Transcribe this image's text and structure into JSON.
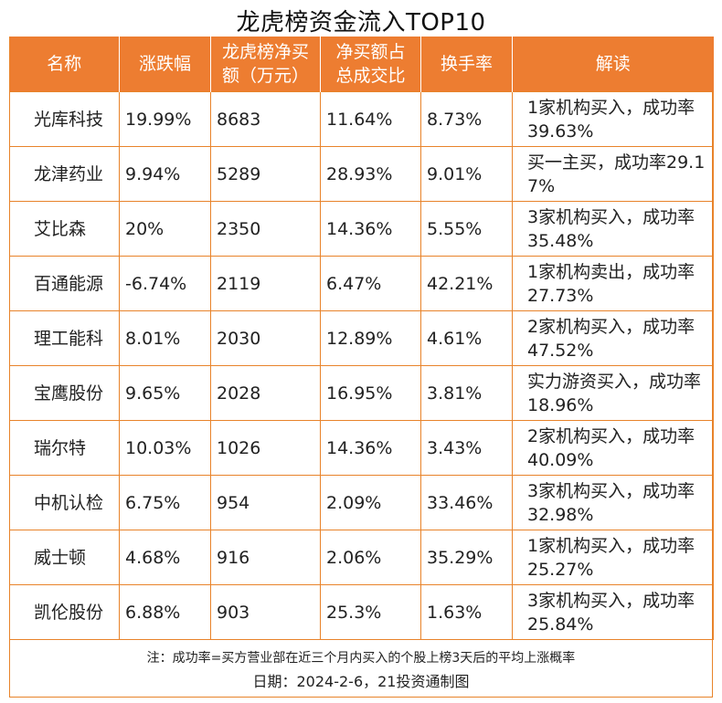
{
  "title": "龙虎榜资金流入TOP10",
  "headers": [
    "名称",
    "涨跌幅",
    "龙虎榜净买额（万元）",
    "净买额占总成交比",
    "换手率",
    "解读"
  ],
  "rows": [
    {
      "name": "光库科技",
      "change": "19.99%",
      "net_buy": "8683",
      "ratio": "11.64%",
      "turnover": "8.73%",
      "interp": "1家机构买入，成功率39.63%"
    },
    {
      "name": "龙津药业",
      "change": "9.94%",
      "net_buy": "5289",
      "ratio": "28.93%",
      "turnover": "9.01%",
      "interp": "买一主买，成功率29.17%"
    },
    {
      "name": "艾比森",
      "change": "20%",
      "net_buy": "2350",
      "ratio": "14.36%",
      "turnover": "5.55%",
      "interp": "3家机构买入，成功率35.48%"
    },
    {
      "name": "百通能源",
      "change": "-6.74%",
      "net_buy": "2119",
      "ratio": "6.47%",
      "turnover": "42.21%",
      "interp": "1家机构卖出，成功率27.73%"
    },
    {
      "name": "理工能科",
      "change": "8.01%",
      "net_buy": "2030",
      "ratio": "12.89%",
      "turnover": "4.61%",
      "interp": "2家机构买入，成功率47.52%"
    },
    {
      "name": "宝鹰股份",
      "change": "9.65%",
      "net_buy": "2028",
      "ratio": "16.95%",
      "turnover": "3.81%",
      "interp": "实力游资买入，成功率18.96%"
    },
    {
      "name": "瑞尔特",
      "change": "10.03%",
      "net_buy": "1026",
      "ratio": "14.36%",
      "turnover": "3.43%",
      "interp": "2家机构买入，成功率40.09%"
    },
    {
      "name": "中机认检",
      "change": "6.75%",
      "net_buy": "954",
      "ratio": "2.09%",
      "turnover": "33.46%",
      "interp": "3家机构买入，成功率32.98%"
    },
    {
      "name": "威士顿",
      "change": "4.68%",
      "net_buy": "916",
      "ratio": "2.06%",
      "turnover": "35.29%",
      "interp": "1家机构买入，成功率25.27%"
    },
    {
      "name": "凯伦股份",
      "change": "6.88%",
      "net_buy": "903",
      "ratio": "25.3%",
      "turnover": "1.63%",
      "interp": "3家机构买入，成功率25.84%"
    }
  ],
  "note": "注：成功率=买方营业部在近三个月内买入的个股上榜3天后的平均上涨概率",
  "date": "日期：2024-2-6，21投资通制图",
  "colors": {
    "header_bg": "#ed7d31",
    "border": "#e8832a"
  }
}
